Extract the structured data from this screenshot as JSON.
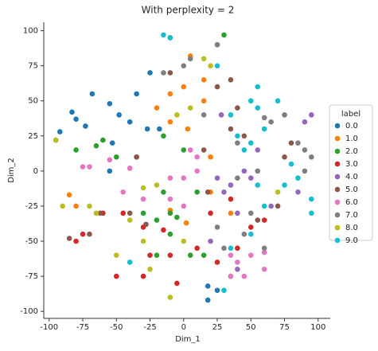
{
  "chart_data": {
    "type": "scatter",
    "title": "With perplexity = 2",
    "x_label": "Dim_1",
    "y_label": "Dim_2",
    "xlim": [
      -104,
      109
    ],
    "ylim": [
      -105,
      106
    ],
    "xticks": [
      -100,
      -75,
      -50,
      -25,
      0,
      25,
      50,
      75,
      100
    ],
    "yticks": [
      -100,
      -75,
      -50,
      -25,
      0,
      25,
      50,
      75,
      100
    ],
    "legend_title": "label",
    "legend_position": "right",
    "series": [
      {
        "name": "0.0",
        "color": "#1f77b4",
        "x": [
          -95,
          -92,
          -83,
          -80,
          -73,
          -68,
          -55,
          -48,
          -53,
          -55,
          -40,
          -35,
          -25,
          -27,
          18,
          18,
          25,
          -18
        ],
        "y": [
          22,
          28,
          42,
          37,
          32,
          55,
          48,
          40,
          20,
          0,
          35,
          55,
          70,
          30,
          -82,
          -92,
          -85,
          30
        ]
      },
      {
        "name": "1.0",
        "color": "#ff7f0e",
        "x": [
          -85,
          -80,
          -20,
          -10,
          -10,
          0,
          5,
          3,
          15,
          20,
          15,
          35,
          20,
          2,
          -10
        ],
        "y": [
          -17,
          -25,
          45,
          55,
          35,
          60,
          82,
          30,
          50,
          10,
          65,
          -30,
          -15,
          -37,
          -28
        ]
      },
      {
        "name": "2.0",
        "color": "#2ca02c",
        "x": [
          -80,
          -65,
          -60,
          -50,
          -35,
          -15,
          -15,
          -10,
          -5,
          -20,
          -30,
          30,
          25,
          0,
          5,
          15,
          -20,
          10,
          -10
        ],
        "y": [
          15,
          18,
          22,
          10,
          10,
          25,
          -15,
          -30,
          -33,
          -35,
          -30,
          97,
          90,
          15,
          -60,
          -60,
          -60,
          -15,
          -45
        ]
      },
      {
        "name": "3.0",
        "color": "#d62728",
        "x": [
          -80,
          -75,
          -60,
          -45,
          -30,
          -25,
          -30,
          -10,
          -5,
          10,
          -15,
          20,
          35,
          50,
          40,
          60,
          25,
          -50
        ],
        "y": [
          -50,
          -45,
          -30,
          -30,
          -40,
          -60,
          -75,
          -60,
          -80,
          -55,
          -42,
          -30,
          -20,
          -40,
          -55,
          -35,
          -65,
          -75
        ]
      },
      {
        "name": "4.0",
        "color": "#9467bd",
        "x": [
          25,
          30,
          35,
          40,
          45,
          50,
          65,
          90,
          95,
          85,
          20,
          35,
          40,
          55,
          28
        ],
        "y": [
          -5,
          -15,
          -10,
          -30,
          0,
          -5,
          -25,
          35,
          40,
          -15,
          -50,
          -75,
          -70,
          15,
          40
        ]
      },
      {
        "name": "5.0",
        "color": "#8c564b",
        "x": [
          -85,
          -70,
          -62,
          -35,
          -40,
          -28,
          -10,
          -10,
          25,
          35,
          40,
          35,
          45,
          55,
          70,
          75,
          80,
          15,
          18
        ],
        "y": [
          -48,
          -45,
          -30,
          10,
          -30,
          -38,
          70,
          95,
          60,
          65,
          45,
          30,
          25,
          -35,
          -25,
          10,
          20,
          15,
          -15
        ]
      },
      {
        "name": "6.0",
        "color": "#e377c2",
        "x": [
          -75,
          -70,
          -55,
          -40,
          -45,
          -30,
          -10,
          0,
          5,
          10,
          0,
          10,
          -10,
          50,
          60,
          60,
          45,
          35,
          40,
          35
        ],
        "y": [
          3,
          3,
          8,
          2,
          -15,
          -20,
          -20,
          -5,
          15,
          10,
          -25,
          0,
          -5,
          -60,
          -70,
          -58,
          -75,
          -75,
          -65,
          -60
        ]
      },
      {
        "name": "7.0",
        "color": "#7f7f7f",
        "x": [
          25,
          30,
          45,
          50,
          60,
          60,
          65,
          75,
          85,
          90,
          95,
          90,
          5,
          0,
          -15,
          25,
          15,
          40,
          55,
          40
        ],
        "y": [
          -40,
          -55,
          -45,
          -30,
          -55,
          38,
          35,
          40,
          20,
          15,
          10,
          0,
          80,
          75,
          70,
          90,
          40,
          20,
          0,
          -5
        ]
      },
      {
        "name": "8.0",
        "color": "#bcbd22",
        "x": [
          -95,
          -90,
          -70,
          -65,
          -40,
          -30,
          -50,
          -20,
          -30,
          -25,
          -10,
          0,
          -5,
          15,
          20,
          5,
          70,
          85
        ],
        "y": [
          22,
          -25,
          -25,
          -30,
          -35,
          -50,
          -60,
          -10,
          -12,
          -70,
          -90,
          -50,
          40,
          80,
          75,
          45,
          -15,
          -5
        ]
      },
      {
        "name": "9.0",
        "color": "#17becf",
        "x": [
          -15,
          -10,
          25,
          35,
          40,
          45,
          50,
          50,
          55,
          55,
          60,
          55,
          60,
          75,
          85,
          95,
          50,
          35,
          30,
          -40,
          70,
          80,
          95
        ],
        "y": [
          97,
          95,
          75,
          40,
          25,
          15,
          20,
          50,
          45,
          60,
          30,
          -10,
          -25,
          -10,
          -5,
          -20,
          -45,
          -55,
          -85,
          -65,
          50,
          5,
          -30
        ]
      }
    ]
  }
}
